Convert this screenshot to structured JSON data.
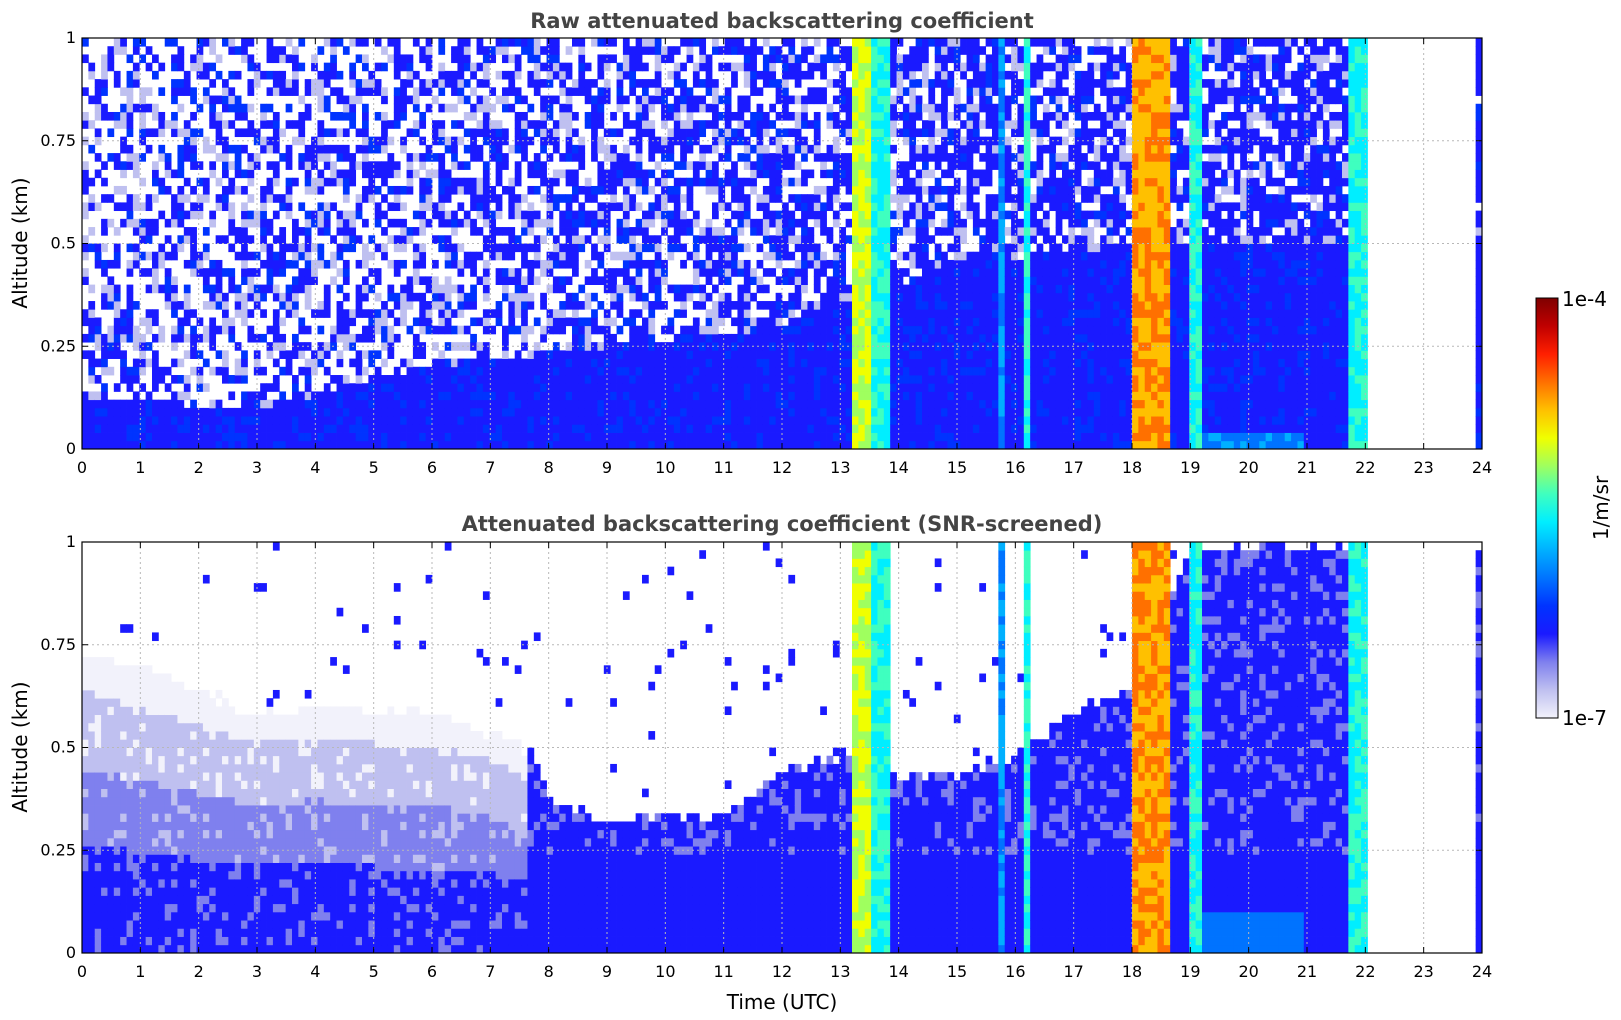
{
  "chart_data": [
    {
      "type": "heatmap",
      "title": "Raw attenuated backscattering coefficient",
      "xlabel": "",
      "ylabel": "Altitude (km)",
      "xlim": [
        0,
        24
      ],
      "ylim": [
        0,
        1
      ],
      "x_ticks": [
        "0",
        "1",
        "2",
        "3",
        "4",
        "5",
        "6",
        "7",
        "8",
        "9",
        "10",
        "11",
        "12",
        "13",
        "14",
        "15",
        "16",
        "17",
        "18",
        "19",
        "20",
        "21",
        "22",
        "23",
        "24"
      ],
      "y_ticks": [
        "0",
        "0.25",
        "0.5",
        "0.75",
        "1"
      ],
      "grid": true,
      "screened": false,
      "data_gaps_utc": [
        [
          22.05,
          23.85
        ]
      ],
      "aerosol_layer_top_km": [
        {
          "x": 0,
          "y": 0.12
        },
        {
          "x": 3,
          "y": 0.1
        },
        {
          "x": 6,
          "y": 0.2
        },
        {
          "x": 9,
          "y": 0.25
        },
        {
          "x": 12,
          "y": 0.3
        },
        {
          "x": 15,
          "y": 0.45
        },
        {
          "x": 18,
          "y": 0.5
        },
        {
          "x": 21,
          "y": 0.5
        }
      ],
      "cloud_bands_utc": [
        {
          "start": 13.2,
          "end": 13.5,
          "level": "high"
        },
        {
          "start": 13.5,
          "end": 13.85,
          "level": "medium"
        },
        {
          "start": 15.75,
          "end": 15.85,
          "level": "low"
        },
        {
          "start": 16.1,
          "end": 16.25,
          "level": "medium"
        },
        {
          "start": 18.05,
          "end": 18.65,
          "level": "very high"
        },
        {
          "start": 18.95,
          "end": 19.15,
          "level": "medium"
        },
        {
          "start": 21.75,
          "end": 22.0,
          "level": "medium"
        },
        {
          "start": 23.8,
          "end": 23.9,
          "level": "low"
        }
      ]
    },
    {
      "type": "heatmap",
      "title": "Attenuated backscattering coefficient (SNR-screened)",
      "xlabel": "Time (UTC)",
      "ylabel": "Altitude (km)",
      "xlim": [
        0,
        24
      ],
      "ylim": [
        0,
        1
      ],
      "x_ticks": [
        "0",
        "1",
        "2",
        "3",
        "4",
        "5",
        "6",
        "7",
        "8",
        "9",
        "10",
        "11",
        "12",
        "13",
        "14",
        "15",
        "16",
        "17",
        "18",
        "19",
        "20",
        "21",
        "22",
        "23",
        "24"
      ],
      "y_ticks": [
        "0",
        "0.25",
        "0.5",
        "0.75",
        "1"
      ],
      "grid": true,
      "screened": true,
      "signal_top_km": [
        {
          "x": 0,
          "y": 0.75
        },
        {
          "x": 1,
          "y": 0.7
        },
        {
          "x": 2,
          "y": 0.65
        },
        {
          "x": 3,
          "y": 0.6
        },
        {
          "x": 4,
          "y": 0.62
        },
        {
          "x": 5,
          "y": 0.6
        },
        {
          "x": 6,
          "y": 0.6
        },
        {
          "x": 7,
          "y": 0.55
        },
        {
          "x": 7.7,
          "y": 0.5
        },
        {
          "x": 8,
          "y": 0.4
        },
        {
          "x": 9,
          "y": 0.33
        },
        {
          "x": 10,
          "y": 0.35
        },
        {
          "x": 11,
          "y": 0.35
        },
        {
          "x": 12,
          "y": 0.45
        },
        {
          "x": 13,
          "y": 0.5
        },
        {
          "x": 14,
          "y": 0.45
        },
        {
          "x": 15,
          "y": 0.45
        },
        {
          "x": 16,
          "y": 0.5
        },
        {
          "x": 17,
          "y": 0.6
        },
        {
          "x": 18,
          "y": 0.65
        },
        {
          "x": 19,
          "y": 1.0
        },
        {
          "x": 22,
          "y": 1.0
        }
      ],
      "data_gaps_utc": [
        [
          22.05,
          23.85
        ]
      ]
    }
  ],
  "colorbar": {
    "label": "1/m/sr",
    "max_label": "1e-4",
    "min_label": "1e-7",
    "colormap": [
      "#f2f2fb",
      "#bfc0f0",
      "#7f80ee",
      "#1a1aff",
      "#0033ff",
      "#0073ff",
      "#00b0ff",
      "#00eeff",
      "#3fffbf",
      "#9fff5f",
      "#f0ff00",
      "#ffc000",
      "#ff7000",
      "#ff1f00",
      "#c00000",
      "#7f0000"
    ]
  }
}
